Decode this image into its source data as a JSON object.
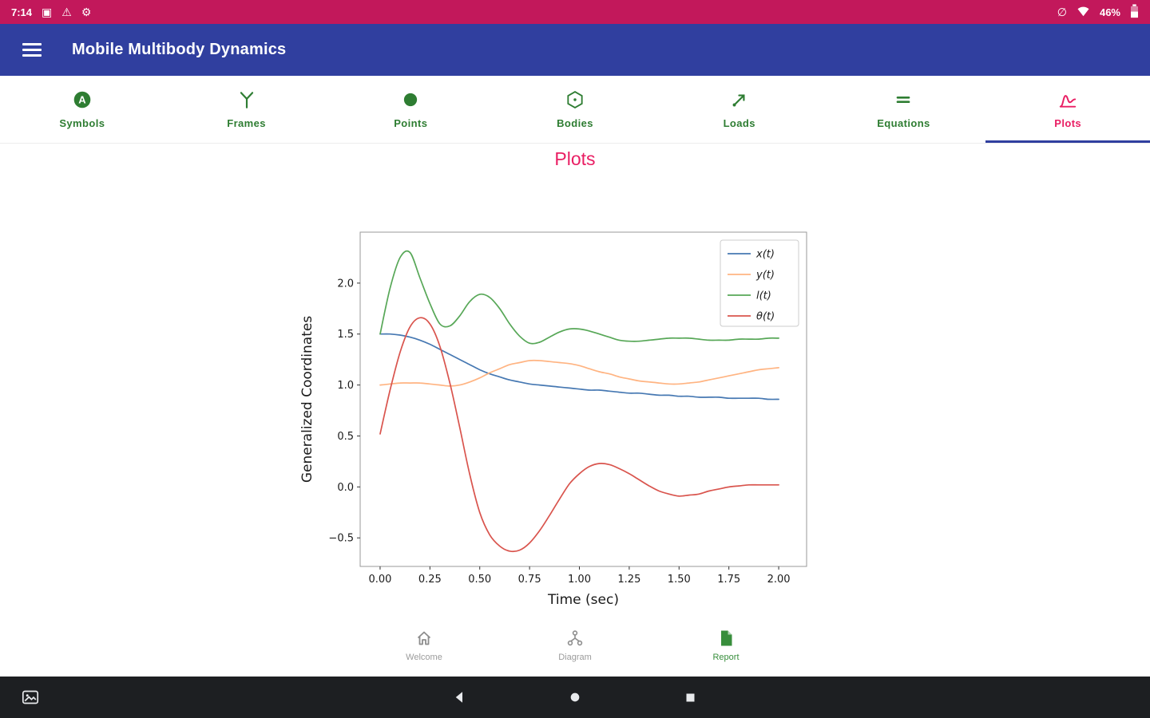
{
  "colors": {
    "status_bar": "#c2185b",
    "app_bar": "#303f9f",
    "accent_pink": "#e91e63",
    "tab_green": "#2e7d32",
    "nav_green": "#388e3c",
    "nav_grey": "#9b9b9b",
    "system_bar": "#1d1f22"
  },
  "status_bar": {
    "time": "7:14",
    "left_icons": [
      "screenshot-icon",
      "warning-icon",
      "settings-icon"
    ],
    "right_icons": [
      "no-signal-icon",
      "wifi-icon",
      "battery-icon"
    ],
    "battery_percent": "46%"
  },
  "app_bar": {
    "title": "Mobile Multibody Dynamics"
  },
  "tab_bar": {
    "tabs": [
      {
        "id": "symbols",
        "label": "Symbols",
        "active": false
      },
      {
        "id": "frames",
        "label": "Frames",
        "active": false
      },
      {
        "id": "points",
        "label": "Points",
        "active": false
      },
      {
        "id": "bodies",
        "label": "Bodies",
        "active": false
      },
      {
        "id": "loads",
        "label": "Loads",
        "active": false
      },
      {
        "id": "equations",
        "label": "Equations",
        "active": false
      },
      {
        "id": "plots",
        "label": "Plots",
        "active": true
      }
    ]
  },
  "page": {
    "title": "Plots"
  },
  "chart_data": {
    "type": "line",
    "title": "",
    "xlabel": "Time (sec)",
    "ylabel": "Generalized Coordinates",
    "grid": false,
    "legend_position": "upper right",
    "xlim": [
      -0.1,
      2.14
    ],
    "ylim": [
      -0.78,
      2.5
    ],
    "xticks": [
      0,
      0.25,
      0.5,
      0.75,
      1,
      1.25,
      1.5,
      1.75,
      2
    ],
    "xtick_labels": [
      "0.00",
      "0.25",
      "0.50",
      "0.75",
      "1.00",
      "1.25",
      "1.50",
      "1.75",
      "2.00"
    ],
    "yticks": [
      -0.5,
      0,
      0.5,
      1,
      1.5,
      2
    ],
    "ytick_labels": [
      "−0.5",
      "0.0",
      "0.5",
      "1.0",
      "1.5",
      "2.0"
    ],
    "x": [
      0,
      0.05,
      0.1,
      0.15,
      0.2,
      0.25,
      0.3,
      0.35,
      0.4,
      0.45,
      0.5,
      0.55,
      0.6,
      0.65,
      0.7,
      0.75,
      0.8,
      0.85,
      0.9,
      0.95,
      1,
      1.05,
      1.1,
      1.15,
      1.2,
      1.25,
      1.3,
      1.35,
      1.4,
      1.45,
      1.5,
      1.55,
      1.6,
      1.65,
      1.7,
      1.75,
      1.8,
      1.85,
      1.9,
      1.95,
      2
    ],
    "series": [
      {
        "name": "x(t)",
        "color": "#4678b2",
        "values": [
          1.5,
          1.5,
          1.49,
          1.47,
          1.44,
          1.4,
          1.35,
          1.3,
          1.25,
          1.2,
          1.15,
          1.11,
          1.08,
          1.05,
          1.03,
          1.01,
          1.0,
          0.99,
          0.98,
          0.97,
          0.96,
          0.95,
          0.95,
          0.94,
          0.93,
          0.92,
          0.92,
          0.91,
          0.9,
          0.9,
          0.89,
          0.89,
          0.88,
          0.88,
          0.88,
          0.87,
          0.87,
          0.87,
          0.87,
          0.86,
          0.86
        ]
      },
      {
        "name": "y(t)",
        "color": "#ffb482",
        "values": [
          1.0,
          1.01,
          1.02,
          1.02,
          1.02,
          1.01,
          1.0,
          0.99,
          1.0,
          1.03,
          1.07,
          1.12,
          1.16,
          1.2,
          1.22,
          1.24,
          1.24,
          1.23,
          1.22,
          1.21,
          1.19,
          1.16,
          1.13,
          1.11,
          1.08,
          1.06,
          1.04,
          1.03,
          1.02,
          1.01,
          1.01,
          1.02,
          1.03,
          1.05,
          1.07,
          1.09,
          1.11,
          1.13,
          1.15,
          1.16,
          1.17
        ]
      },
      {
        "name": "l(t)",
        "color": "#57a757",
        "values": [
          1.5,
          1.95,
          2.25,
          2.3,
          2.05,
          1.8,
          1.6,
          1.58,
          1.68,
          1.82,
          1.89,
          1.86,
          1.75,
          1.6,
          1.48,
          1.41,
          1.42,
          1.47,
          1.52,
          1.55,
          1.55,
          1.53,
          1.5,
          1.47,
          1.44,
          1.43,
          1.43,
          1.44,
          1.45,
          1.46,
          1.46,
          1.46,
          1.45,
          1.44,
          1.44,
          1.44,
          1.45,
          1.45,
          1.45,
          1.46,
          1.46
        ]
      },
      {
        "name": "θ(t)",
        "color": "#d9544d",
        "values": [
          0.52,
          0.95,
          1.32,
          1.57,
          1.66,
          1.6,
          1.38,
          1.02,
          0.58,
          0.12,
          -0.25,
          -0.47,
          -0.58,
          -0.63,
          -0.62,
          -0.55,
          -0.43,
          -0.28,
          -0.12,
          0.03,
          0.13,
          0.2,
          0.23,
          0.22,
          0.18,
          0.13,
          0.07,
          0.01,
          -0.04,
          -0.07,
          -0.09,
          -0.08,
          -0.07,
          -0.04,
          -0.02,
          0,
          0.01,
          0.02,
          0.02,
          0.02,
          0.02
        ]
      }
    ]
  },
  "bottom_nav": {
    "items": [
      {
        "id": "welcome",
        "label": "Welcome",
        "active": false
      },
      {
        "id": "diagram",
        "label": "Diagram",
        "active": false
      },
      {
        "id": "report",
        "label": "Report",
        "active": true
      }
    ]
  },
  "system_nav": {
    "buttons": [
      "screenshot",
      "back",
      "home",
      "recents"
    ]
  }
}
